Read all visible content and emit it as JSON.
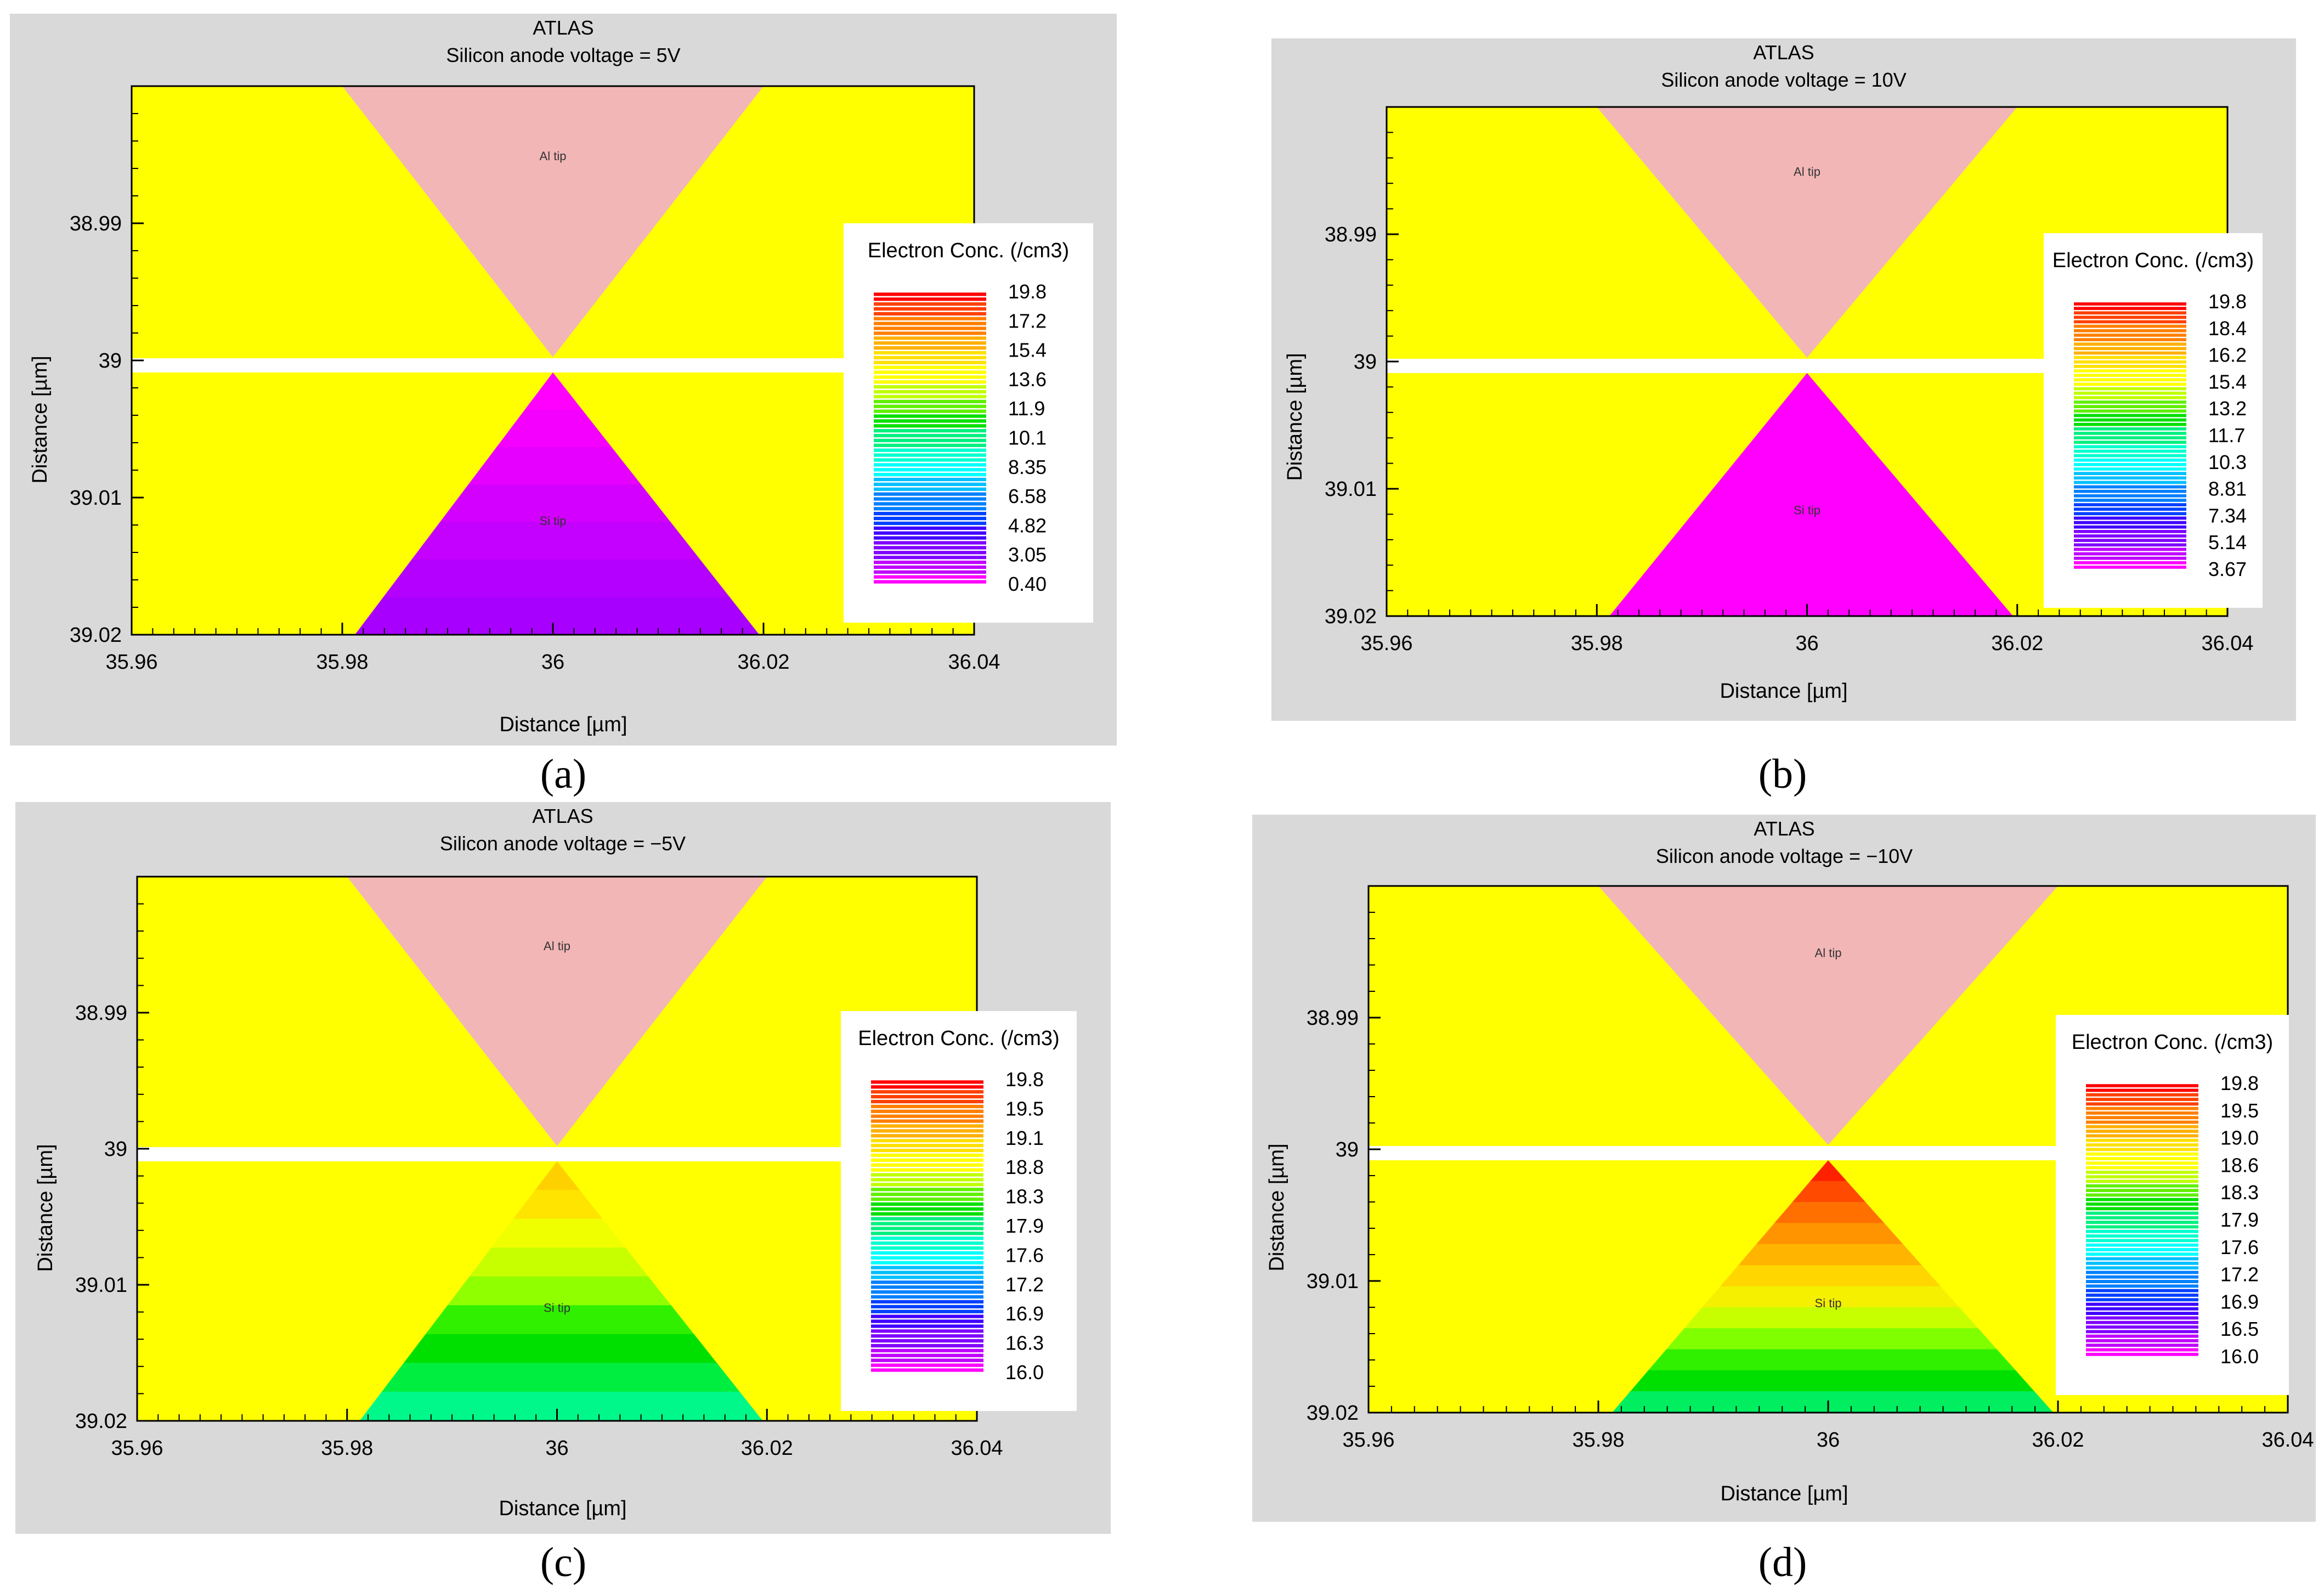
{
  "figure": {
    "panels": [
      {
        "id": "a",
        "label": "(a)",
        "title": "ATLAS",
        "subtitle": "Silicon anode voltage = 5V",
        "xlabel": "Distance [µm]",
        "ylabel": "Distance [µm]",
        "x_ticks": [
          "35.96",
          "35.98",
          "36",
          "36.02",
          "36.04"
        ],
        "y_ticks": [
          "38.99",
          "39",
          "39.01",
          "39.02"
        ],
        "top_region_label": "Al tip",
        "bottom_region_label": "Si tip",
        "legend_title": "Electron Conc. (/cm3)",
        "legend_values": [
          "19.8",
          "17.2",
          "15.4",
          "13.6",
          "11.9",
          "10.1",
          "8.35",
          "6.58",
          "4.82",
          "3.05",
          "0.40"
        ],
        "si_tip_bands": [
          "#ff00ff",
          "#f400ff",
          "#e600ff",
          "#d400ff",
          "#c400ff",
          "#b400ff",
          "#a800ff"
        ]
      },
      {
        "id": "b",
        "label": "(b)",
        "title": "ATLAS",
        "subtitle": "Silicon anode voltage = 10V",
        "xlabel": "Distance [µm]",
        "ylabel": "Distance [µm]",
        "x_ticks": [
          "35.96",
          "35.98",
          "36",
          "36.02",
          "36.04"
        ],
        "y_ticks": [
          "38.99",
          "39",
          "39.01",
          "39.02"
        ],
        "top_region_label": "Al tip",
        "bottom_region_label": "Si tip",
        "legend_title": "Electron Conc. (/cm3)",
        "legend_values": [
          "19.8",
          "18.4",
          "16.2",
          "15.4",
          "13.2",
          "11.7",
          "10.3",
          "8.81",
          "7.34",
          "5.14",
          "3.67"
        ],
        "si_tip_bands": [
          "#ff00ff",
          "#ff00ff",
          "#ff00ff",
          "#ff00ff",
          "#ff00ff",
          "#ff00ff",
          "#ff00ff"
        ]
      },
      {
        "id": "c",
        "label": "(c)",
        "title": "ATLAS",
        "subtitle": "Silicon anode voltage = −5V",
        "xlabel": "Distance [µm]",
        "ylabel": "Distance [µm]",
        "x_ticks": [
          "35.96",
          "35.98",
          "36",
          "36.02",
          "36.04"
        ],
        "y_ticks": [
          "38.99",
          "39",
          "39.01",
          "39.02"
        ],
        "top_region_label": "Al tip",
        "bottom_region_label": "Si tip",
        "legend_title": "Electron Conc. (/cm3)",
        "legend_values": [
          "19.8",
          "19.5",
          "19.1",
          "18.8",
          "18.3",
          "17.9",
          "17.6",
          "17.2",
          "16.9",
          "16.3",
          "16.0"
        ],
        "si_tip_bands": [
          "#ffd000",
          "#ffe400",
          "#f0ff00",
          "#c8ff00",
          "#90ff00",
          "#30f000",
          "#00e000",
          "#00ee40",
          "#00f88a"
        ]
      },
      {
        "id": "d",
        "label": "(d)",
        "title": "ATLAS",
        "subtitle": "Silicon anode voltage = −10V",
        "xlabel": "Distance [µm]",
        "ylabel": "Distance [µm]",
        "x_ticks": [
          "35.96",
          "35.98",
          "36",
          "36.02",
          "36.04"
        ],
        "y_ticks": [
          "38.99",
          "39",
          "39.01",
          "39.02"
        ],
        "top_region_label": "Al tip",
        "bottom_region_label": "Si tip",
        "legend_title": "Electron Conc. (/cm3)",
        "legend_values": [
          "19.8",
          "19.5",
          "19.0",
          "18.6",
          "18.3",
          "17.9",
          "17.6",
          "17.2",
          "16.9",
          "16.5",
          "16.0"
        ],
        "si_tip_bands": [
          "#ff2000",
          "#ff4a00",
          "#ff7000",
          "#ff9400",
          "#ffb400",
          "#ffd600",
          "#f4f000",
          "#c8ff00",
          "#80ff00",
          "#30f000",
          "#00e000",
          "#00ee60"
        ]
      }
    ]
  },
  "chart_data": [
    {
      "type": "heatmap",
      "title": "ATLAS",
      "subtitle": "Silicon anode voltage = 5V",
      "xlabel": "Distance [µm]",
      "ylabel": "Distance [µm]",
      "xlim": [
        35.96,
        36.04
      ],
      "ylim": [
        39.02,
        38.98
      ],
      "legend_title": "Electron Conc. (/cm3)",
      "legend_values": [
        19.8,
        17.2,
        15.4,
        13.6,
        11.9,
        10.1,
        8.35,
        6.58,
        4.82,
        3.05,
        0.4
      ],
      "annotations": [
        "Al tip",
        "Si tip"
      ]
    },
    {
      "type": "heatmap",
      "title": "ATLAS",
      "subtitle": "Silicon anode voltage = 10V",
      "xlabel": "Distance [µm]",
      "ylabel": "Distance [µm]",
      "xlim": [
        35.96,
        36.04
      ],
      "ylim": [
        39.02,
        38.98
      ],
      "legend_title": "Electron Conc. (/cm3)",
      "legend_values": [
        19.8,
        18.4,
        16.2,
        15.4,
        13.2,
        11.7,
        10.3,
        8.81,
        7.34,
        5.14,
        3.67
      ],
      "annotations": [
        "Al tip",
        "Si tip"
      ]
    },
    {
      "type": "heatmap",
      "title": "ATLAS",
      "subtitle": "Silicon anode voltage = −5V",
      "xlabel": "Distance [µm]",
      "ylabel": "Distance [µm]",
      "xlim": [
        35.96,
        36.04
      ],
      "ylim": [
        39.02,
        38.98
      ],
      "legend_title": "Electron Conc. (/cm3)",
      "legend_values": [
        19.8,
        19.5,
        19.1,
        18.8,
        18.3,
        17.9,
        17.6,
        17.2,
        16.9,
        16.3,
        16.0
      ],
      "annotations": [
        "Al tip",
        "Si tip"
      ]
    },
    {
      "type": "heatmap",
      "title": "ATLAS",
      "subtitle": "Silicon anode voltage = −10V",
      "xlabel": "Distance [µm]",
      "ylabel": "Distance [µm]",
      "xlim": [
        35.96,
        36.04
      ],
      "ylim": [
        39.02,
        38.98
      ],
      "legend_title": "Electron Conc. (/cm3)",
      "legend_values": [
        19.8,
        19.5,
        19.0,
        18.6,
        18.3,
        17.9,
        17.6,
        17.2,
        16.9,
        16.5,
        16.0
      ],
      "annotations": [
        "Al tip",
        "Si tip"
      ]
    }
  ],
  "colors": {
    "frame_bg": "#d9d9d9",
    "background_region": "#ffff00",
    "al_tip": "#f2b6b6",
    "legend_scale": [
      "#ff0000",
      "#ff4000",
      "#ff8000",
      "#ffb000",
      "#ffe000",
      "#ffff00",
      "#c0ff00",
      "#60f000",
      "#00e000",
      "#00f080",
      "#00ffd0",
      "#00ffff",
      "#00c0ff",
      "#0080ff",
      "#0040ff",
      "#4000ff",
      "#8000ff",
      "#c000ff",
      "#ff00ff"
    ]
  }
}
